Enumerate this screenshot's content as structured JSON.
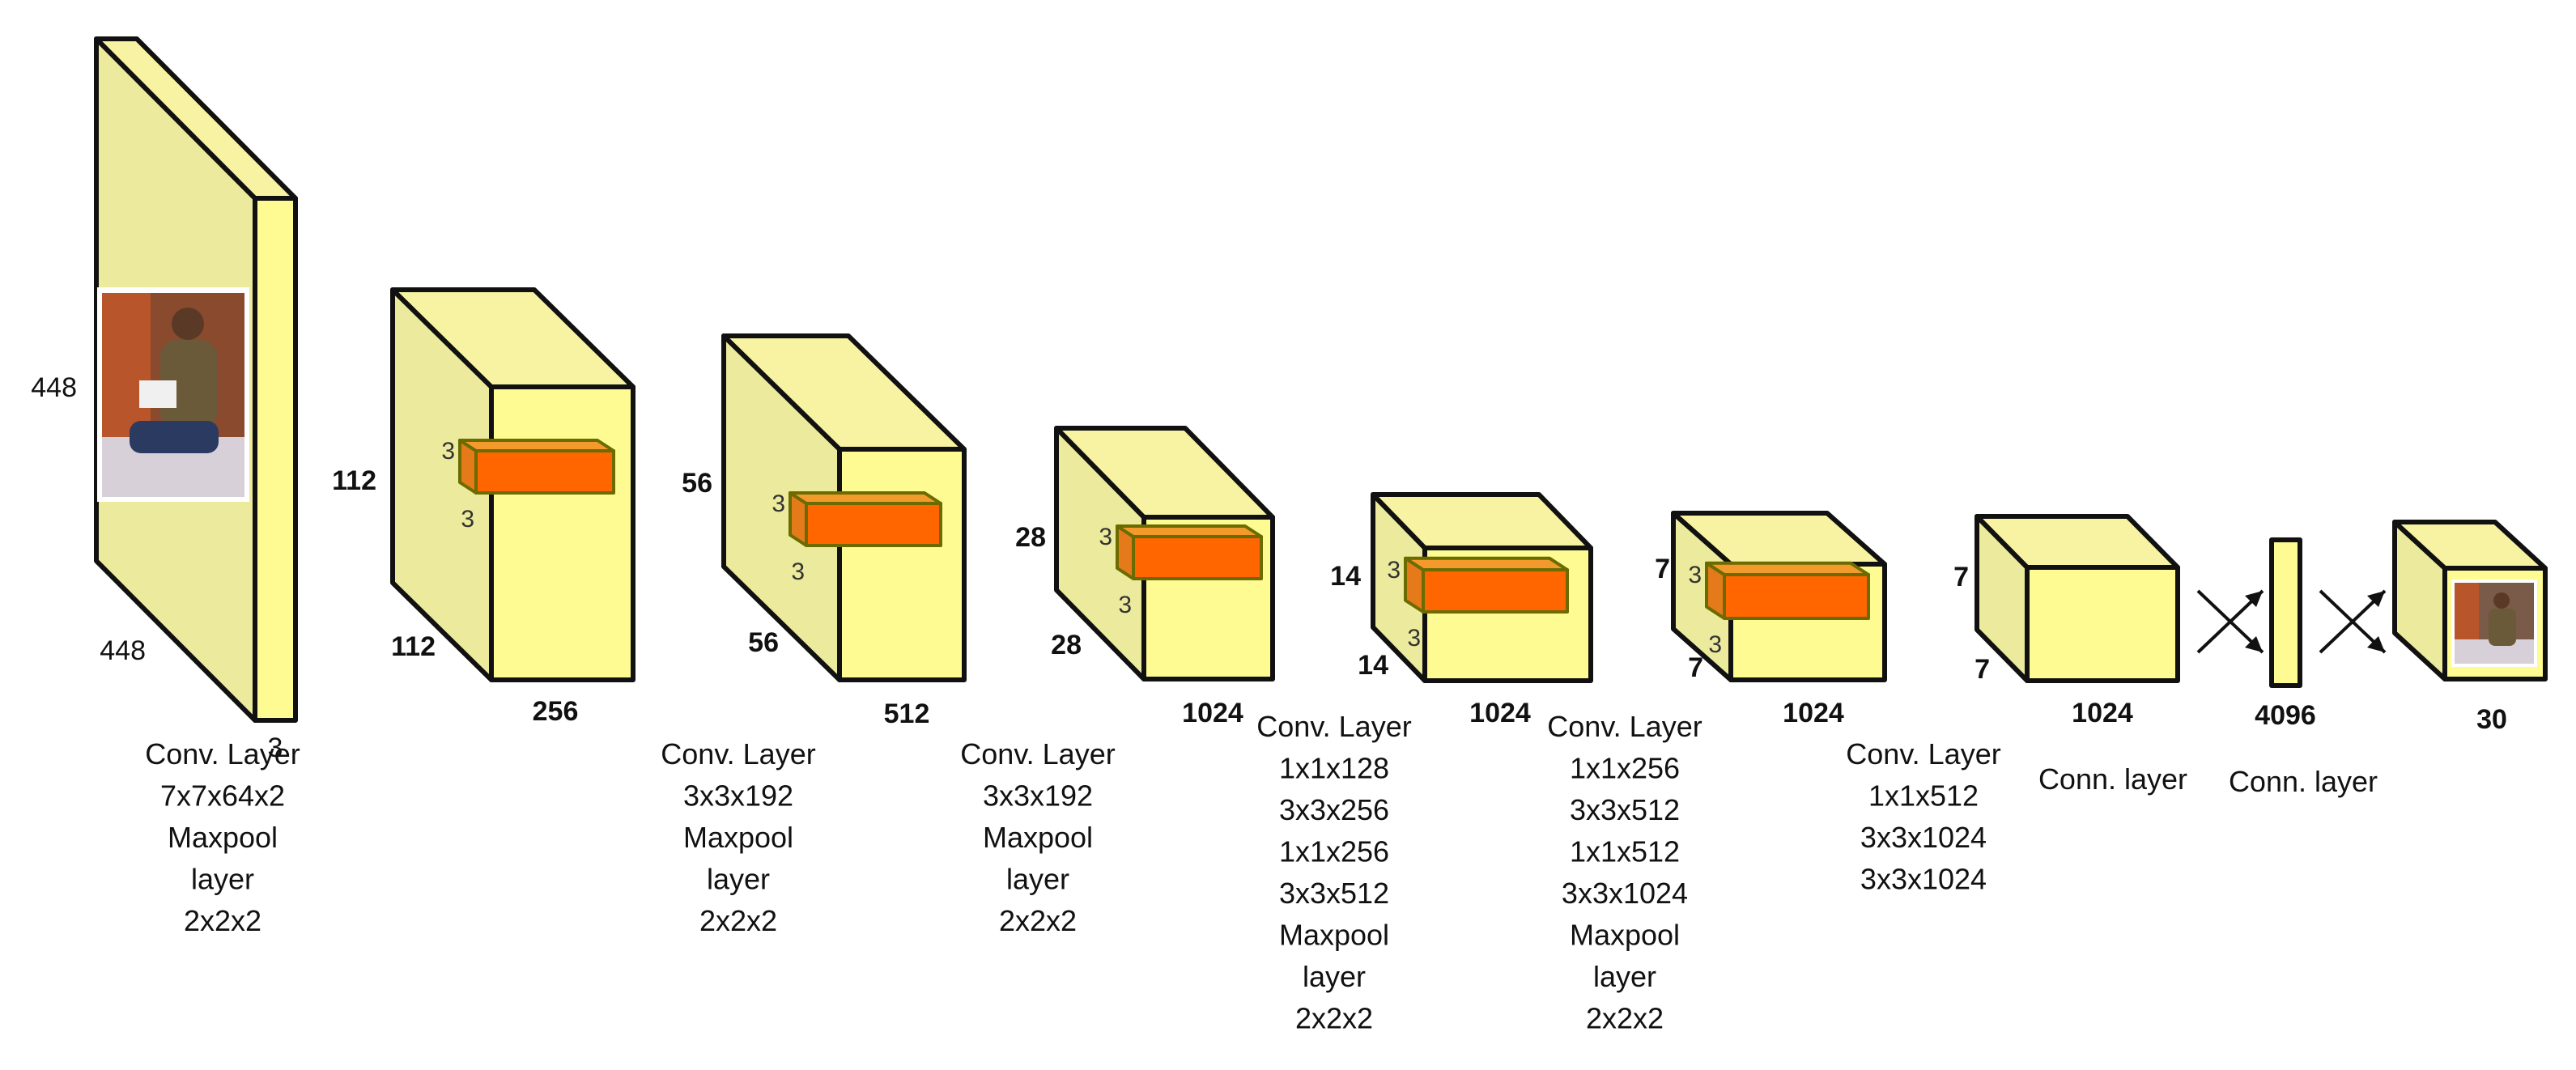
{
  "colors": {
    "box_front": "#fdfb91",
    "box_top": "#f7f3a2",
    "box_side": "#ecea9c",
    "kernel_front": "#ff6600",
    "kernel_top": "#f39a2c",
    "kernel_side": "#e47a1a",
    "outline": "#111111"
  },
  "input": {
    "height": "448",
    "width": "448",
    "depth": "3",
    "image_icon": "person-photo-icon"
  },
  "layers": [
    {
      "height": "112",
      "width": "112",
      "depth": "256",
      "kernel": "3"
    },
    {
      "height": "56",
      "width": "56",
      "depth": "512",
      "kernel": "3"
    },
    {
      "height": "28",
      "width": "28",
      "depth": "1024",
      "kernel": "3"
    },
    {
      "height": "14",
      "width": "14",
      "depth": "1024",
      "kernel": "3"
    },
    {
      "height": "7",
      "width": "7",
      "depth": "1024",
      "kernel": "3"
    },
    {
      "height": "7",
      "width": "7",
      "depth": "1024"
    }
  ],
  "fc": {
    "size": "4096"
  },
  "output": {
    "size": "30",
    "image_icon": "person-photo-thumbnail-icon"
  },
  "descriptions": [
    [
      "Conv. Layer",
      "7x7x64x2",
      "Maxpool",
      "layer",
      "2x2x2"
    ],
    [
      "Conv. Layer",
      "3x3x192",
      "Maxpool",
      "layer",
      "2x2x2"
    ],
    [
      "Conv. Layer",
      "3x3x192",
      "Maxpool",
      "layer",
      "2x2x2"
    ],
    [
      "Conv. Layer",
      "1x1x128",
      "3x3x256",
      "1x1x256",
      "3x3x512",
      "Maxpool",
      "layer",
      "2x2x2"
    ],
    [
      "Conv. Layer",
      "1x1x256",
      "3x3x512",
      "1x1x512",
      "3x3x1024",
      "Maxpool",
      "layer",
      "2x2x2"
    ],
    [
      "Conv. Layer",
      "1x1x512",
      "3x3x1024",
      "3x3x1024"
    ],
    [
      "Conn. layer"
    ],
    [
      "Conn. layer"
    ]
  ]
}
